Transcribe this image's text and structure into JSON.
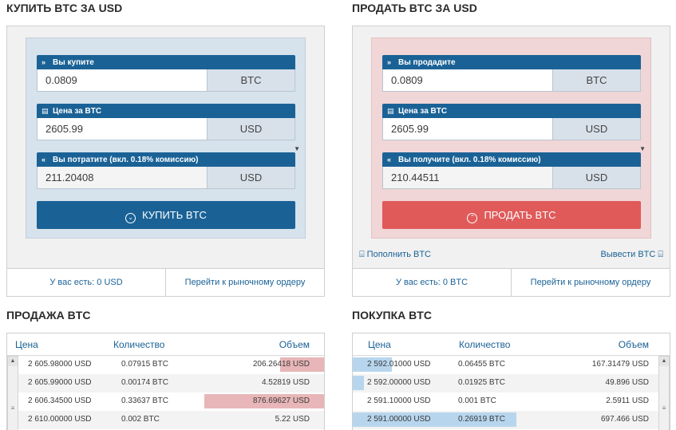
{
  "buy": {
    "title": "КУПИТЬ BTC ЗА USD",
    "amount_label": "Вы купите",
    "amount_value": "0.0809",
    "amount_currency": "BTC",
    "price_label": "Цена за BTC",
    "price_value": "2605.99",
    "price_currency": "USD",
    "total_label": "Вы потратите (вкл. 0.18% комиссию)",
    "total_value": "211.20408",
    "total_currency": "USD",
    "button_label": "КУПИТЬ BTC",
    "balance": "У вас есть: 0 USD",
    "market_link": "Перейти к рыночному ордеру"
  },
  "sell": {
    "title": "ПРОДАТЬ BTC ЗА USD",
    "amount_label": "Вы продадите",
    "amount_value": "0.0809",
    "amount_currency": "BTC",
    "price_label": "Цена за BTC",
    "price_value": "2605.99",
    "price_currency": "USD",
    "total_label": "Вы получите (вкл. 0.18% комиссию)",
    "total_value": "210.44511",
    "total_currency": "USD",
    "button_label": "ПРОДАТЬ BTC",
    "deposit_link": "Пополнить BTC",
    "withdraw_link": "Вывести BTC",
    "balance": "У вас есть: 0 BTC",
    "market_link": "Перейти к рыночному ордеру"
  },
  "sell_orders": {
    "title": "ПРОДАЖА BTC",
    "columns": [
      "Цена",
      "Количество",
      "Объем"
    ],
    "rows": [
      {
        "price": "2 605.98000 USD",
        "qty": "0.07915 BTC",
        "volume": "206.26418 USD",
        "depth": 0.37
      },
      {
        "price": "2 605.99000 USD",
        "qty": "0.00174 BTC",
        "volume": "4.52819 USD",
        "depth": 0
      },
      {
        "price": "2 606.34500 USD",
        "qty": "0.33637 BTC",
        "volume": "876.69627 USD",
        "depth": 1.0
      },
      {
        "price": "2 610.00000 USD",
        "qty": "0.002 BTC",
        "volume": "5.22 USD",
        "depth": 0
      }
    ]
  },
  "buy_orders": {
    "title": "ПОКУПКА BTC",
    "columns": [
      "Цена",
      "Количество",
      "Объем"
    ],
    "rows": [
      {
        "price": "2 592.01000 USD",
        "qty": "0.06455 BTC",
        "volume": "167.31479 USD",
        "depth": 0.24
      },
      {
        "price": "2 592.00000 USD",
        "qty": "0.01925 BTC",
        "volume": "49.896 USD",
        "depth": 0.07
      },
      {
        "price": "2 591.10000 USD",
        "qty": "0.001 BTC",
        "volume": "2.5911 USD",
        "depth": 0
      },
      {
        "price": "2 591.00000 USD",
        "qty": "0.26919 BTC",
        "volume": "697.466 USD",
        "depth": 1.0
      }
    ]
  },
  "colors": {
    "primary": "#1a6296",
    "sell_button": "#e05a5a",
    "sell_depth": "#e8b6b8",
    "buy_depth": "#b7d6ee"
  },
  "icons": {
    "amount": "double-chevron-right-icon",
    "price": "price-tag-icon",
    "total": "double-chevron-left-icon"
  }
}
